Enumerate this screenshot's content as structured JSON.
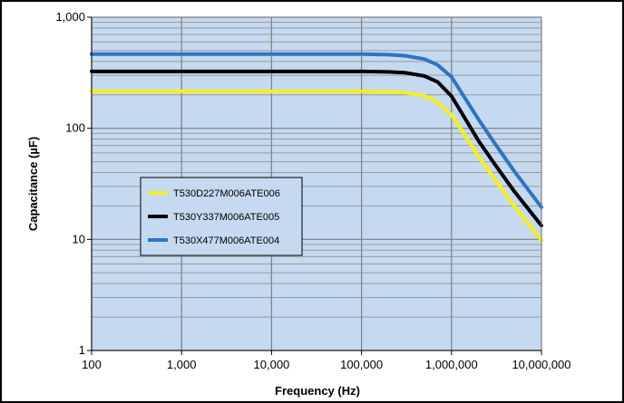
{
  "chart_data": {
    "type": "line",
    "title": "",
    "xlabel": "Frequency (Hz)",
    "ylabel": "Capacitance  (µF)",
    "x_scale": "log",
    "y_scale": "log",
    "xlim": [
      100,
      10000000
    ],
    "ylim": [
      1,
      1000
    ],
    "grid": true,
    "legend_position": "left-center",
    "plot_background": "#c5d9f1",
    "x_tick_labels": [
      "100",
      "1,000",
      "10,000",
      "100,000",
      "1,000,000",
      "10,000,000"
    ],
    "x_tick_values": [
      100,
      1000,
      10000,
      100000,
      1000000,
      10000000
    ],
    "y_tick_labels": [
      "1",
      "10",
      "100",
      "1,000"
    ],
    "y_tick_values": [
      1,
      10,
      100,
      1000
    ],
    "series": [
      {
        "name": "T530D227M006ATE006",
        "color": "#f5ef1e",
        "x": [
          100,
          1000,
          10000,
          100000,
          200000,
          300000,
          500000,
          700000,
          1000000,
          2000000,
          3000000,
          5000000,
          10000000
        ],
        "values": [
          215,
          215,
          215,
          215,
          213,
          210,
          196,
          172,
          132,
          56,
          35,
          20,
          9.8
        ]
      },
      {
        "name": "T530Y337M006ATE005",
        "color": "#000000",
        "x": [
          100,
          1000,
          10000,
          100000,
          200000,
          300000,
          500000,
          700000,
          1000000,
          2000000,
          3000000,
          5000000,
          10000000
        ],
        "values": [
          325,
          325,
          325,
          325,
          322,
          317,
          296,
          262,
          195,
          77,
          48,
          27,
          13.3
        ]
      },
      {
        "name": "T530X477M006ATE004",
        "color": "#2e75c1",
        "x": [
          100,
          1000,
          10000,
          100000,
          200000,
          300000,
          500000,
          700000,
          1000000,
          2000000,
          3000000,
          5000000,
          10000000
        ],
        "values": [
          465,
          465,
          465,
          465,
          460,
          450,
          420,
          372,
          290,
          120,
          74,
          41,
          19.5
        ]
      }
    ]
  }
}
